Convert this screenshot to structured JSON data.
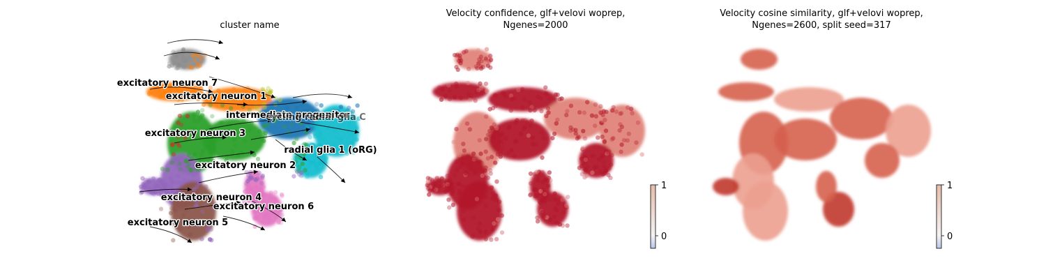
{
  "chart_data": [
    {
      "type": "scatter",
      "title": "cluster name",
      "colors": {
        "excitatory neuron 7": "#8c8c8c",
        "excitatory neuron 1": "#ff7f0e",
        "intermediate progenitor": "#bcbd22",
        "cycling radial glia C": "#1f77b4",
        "radial glia 1 (oRG)": "#17becf",
        "radial glia 2": "#2ca02c",
        "excitatory neuron 3": "#d62728",
        "excitatory neuron 2": "#2ca02c",
        "excitatory neuron 4": "#9467bd",
        "excitatory neuron 5": "#8c564b",
        "excitatory neuron 6": "#e377c2"
      },
      "cluster_labels": [
        "excitatory neuron 7",
        "excitatory neuron 1",
        "intermediate progenitor",
        "cycling radial glia C",
        "excitatory neuron 3",
        "radial glia 1 (oRG)",
        "excitatory neuron 2",
        "excitatory neuron 4",
        "excitatory neuron 6",
        "excitatory neuron 5"
      ],
      "overlay": "velocity streamlines with arrowheads"
    },
    {
      "type": "scatter",
      "title_lines": [
        "Velocity confidence, glf+velovi woprep,",
        "Ngenes=2000"
      ],
      "colorbar": {
        "ticks": [
          "1",
          "0"
        ],
        "range": [
          -0.25,
          1.0
        ],
        "cmap": [
          "#b8c4ea",
          "#f4f2f2",
          "#e6bcaa"
        ]
      },
      "point_color": "#b2182b",
      "typical_value": 0.9
    },
    {
      "type": "scatter",
      "title_lines": [
        "Velocity cosine similarity, glf+velovi woprep,",
        "Ngenes=2600, split seed=317"
      ],
      "colorbar": {
        "ticks": [
          "1",
          "0"
        ],
        "range": [
          -0.25,
          1.0
        ],
        "cmap": [
          "#b8c4ea",
          "#f4f2f2",
          "#e6bcaa"
        ]
      },
      "point_color": "#d6604d",
      "typical_value": 0.75
    }
  ]
}
